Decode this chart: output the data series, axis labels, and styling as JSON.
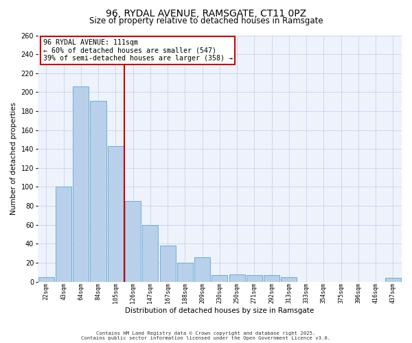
{
  "title": "96, RYDAL AVENUE, RAMSGATE, CT11 0PZ",
  "subtitle": "Size of property relative to detached houses in Ramsgate",
  "xlabel": "Distribution of detached houses by size in Ramsgate",
  "ylabel": "Number of detached properties",
  "tick_labels": [
    "22sqm",
    "43sqm",
    "64sqm",
    "84sqm",
    "105sqm",
    "126sqm",
    "147sqm",
    "167sqm",
    "188sqm",
    "209sqm",
    "230sqm",
    "250sqm",
    "271sqm",
    "292sqm",
    "313sqm",
    "333sqm",
    "354sqm",
    "375sqm",
    "396sqm",
    "416sqm",
    "437sqm"
  ],
  "bar_values": [
    5,
    100,
    206,
    191,
    143,
    85,
    60,
    38,
    20,
    26,
    7,
    8,
    7,
    7,
    5,
    0,
    0,
    0,
    0,
    0,
    4
  ],
  "bar_color": "#b8d0ea",
  "bar_edge_color": "#6baed6",
  "bg_color": "#eef2fb",
  "grid_color": "#c5d4ef",
  "vline_x": 4.5,
  "vline_color": "#cc0000",
  "annotation_text": "96 RYDAL AVENUE: 111sqm\n← 60% of detached houses are smaller (547)\n39% of semi-detached houses are larger (358) →",
  "annotation_box_edgecolor": "#cc0000",
  "ylim": [
    0,
    260
  ],
  "yticks": [
    0,
    20,
    40,
    60,
    80,
    100,
    120,
    140,
    160,
    180,
    200,
    220,
    240,
    260
  ],
  "title_fontsize": 10,
  "subtitle_fontsize": 8.5,
  "footnote1": "Contains HM Land Registry data © Crown copyright and database right 2025.",
  "footnote2": "Contains public sector information licensed under the Open Government Licence v3.0."
}
